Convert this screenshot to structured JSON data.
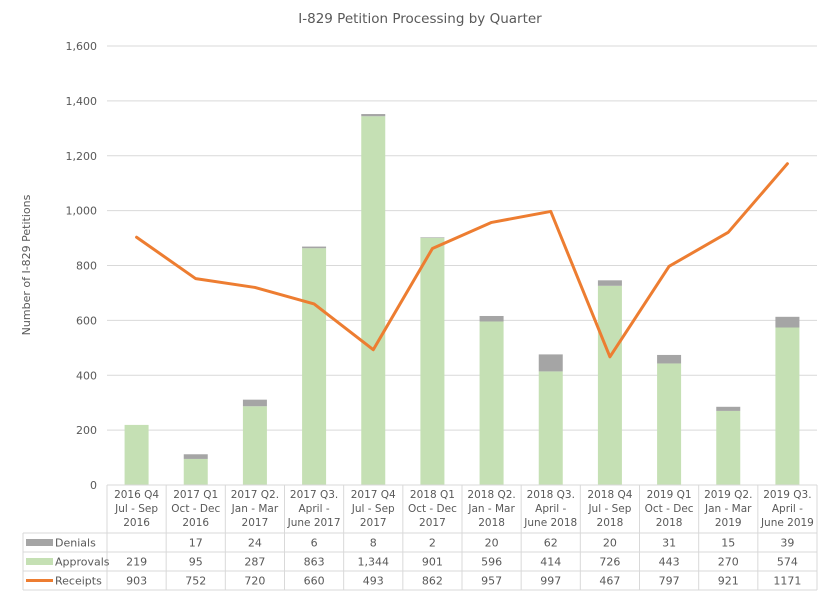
{
  "chart_data": {
    "type": "bar",
    "stacked": true,
    "title": "I-829 Petition Processing by Quarter",
    "ylabel": "Number of I-829 Petitions",
    "xlabel": "",
    "ylim": [
      0,
      1600
    ],
    "yticks": [
      0,
      200,
      400,
      600,
      800,
      1000,
      1200,
      1400,
      1600
    ],
    "ytick_labels": [
      "0",
      "200",
      "400",
      "600",
      "800",
      "1,000",
      "1,200",
      "1,400",
      "1,600"
    ],
    "grid": true,
    "legend": "data-table",
    "categories": [
      [
        "2016 Q4",
        "Jul - Sep",
        "2016"
      ],
      [
        "2017 Q1",
        "Oct - Dec",
        "2016"
      ],
      [
        "2017 Q2.",
        "Jan - Mar",
        "2017"
      ],
      [
        "2017 Q3.",
        "April -",
        "June 2017"
      ],
      [
        "2017 Q4",
        "Jul - Sep",
        "2017"
      ],
      [
        "2018 Q1",
        "Oct - Dec",
        "2017"
      ],
      [
        "2018 Q2.",
        "Jan - Mar",
        "2018"
      ],
      [
        "2018 Q3.",
        "April -",
        "June 2018"
      ],
      [
        "2018 Q4",
        "Jul - Sep",
        "2018"
      ],
      [
        "2019  Q1",
        "Oct - Dec",
        "2018"
      ],
      [
        "2019 Q2.",
        "Jan - Mar",
        "2019"
      ],
      [
        "2019 Q3.",
        "April -",
        "June 2019"
      ]
    ],
    "series": [
      {
        "name": "Denials",
        "kind": "bar",
        "color": "#a5a5a5",
        "values": [
          null,
          17,
          24,
          6,
          8,
          2,
          20,
          62,
          20,
          31,
          15,
          39
        ],
        "labels": [
          "",
          "17",
          "24",
          "6",
          "8",
          "2",
          "20",
          "62",
          "20",
          "31",
          "15",
          "39"
        ]
      },
      {
        "name": "Approvals",
        "kind": "bar",
        "color": "#c5e0b4",
        "values": [
          219,
          95,
          287,
          863,
          1344,
          901,
          596,
          414,
          726,
          443,
          270,
          574
        ],
        "labels": [
          "219",
          "95",
          "287",
          "863",
          "1,344",
          "901",
          "596",
          "414",
          "726",
          "443",
          "270",
          "574"
        ]
      },
      {
        "name": "Receipts",
        "kind": "line",
        "color": "#ed7d31",
        "values": [
          903,
          752,
          720,
          660,
          493,
          862,
          957,
          997,
          467,
          797,
          921,
          1171
        ],
        "labels": [
          "903",
          "752",
          "720",
          "660",
          "493",
          "862",
          "957",
          "997",
          "467",
          "797",
          "921",
          "1171"
        ]
      }
    ]
  }
}
